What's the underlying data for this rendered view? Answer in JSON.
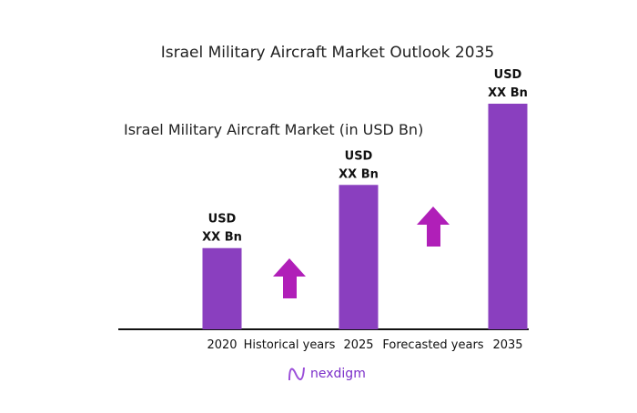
{
  "title": "Israel Military Aircraft Market Outlook 2035",
  "chart_data": {
    "type": "bar",
    "title": "Israel Military Aircraft Market Outlook 2035",
    "subtitle": "Israel Military Aircraft Market (in USD Bn)",
    "categories": [
      "2020",
      "2025",
      "2035"
    ],
    "values_relative": [
      36,
      64,
      100
    ],
    "data_labels": [
      "USD XX Bn",
      "USD XX Bn",
      "USD XX Bn"
    ],
    "data_label_lines": [
      [
        "USD",
        "XX Bn"
      ],
      [
        "USD",
        "XX Bn"
      ],
      [
        "USD",
        "XX Bn"
      ]
    ],
    "annotations": [
      "Historical years",
      "Forecasted years"
    ],
    "bar_color": "#8a3fbf",
    "arrow_color": "#b01fb8",
    "grid": false,
    "legend": "none"
  },
  "logo": {
    "text": "nexdigm",
    "color": "#7b2fc9"
  }
}
